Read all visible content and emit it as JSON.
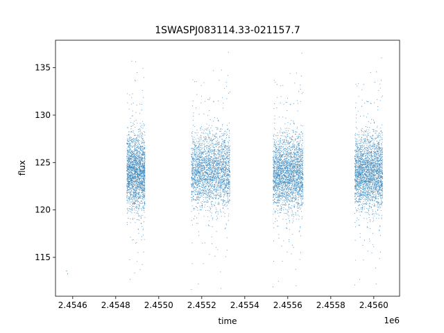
{
  "chart_data": {
    "type": "scatter",
    "title": "1SWASPJ083114.33-021157.7",
    "xlabel": "time",
    "ylabel": "flux",
    "x_offset_label": "1e6",
    "xlim": [
      2454520,
      2456120
    ],
    "ylim": [
      110.9,
      137.9
    ],
    "x_ticks": [
      2454600,
      2454800,
      2455000,
      2455200,
      2455400,
      2455600,
      2455800,
      2456000
    ],
    "x_tick_labels": [
      "2.4546",
      "2.4548",
      "2.4550",
      "2.4552",
      "2.4554",
      "2.4556",
      "2.4558",
      "2.4560"
    ],
    "y_ticks": [
      115,
      120,
      125,
      130,
      135
    ],
    "y_tick_labels": [
      "115",
      "120",
      "125",
      "130",
      "135"
    ],
    "grid": false,
    "marker_color": "#1f77b4",
    "observing_seasons": [
      {
        "x_range": [
          2454850,
          2454935
        ],
        "median_flux": 124.0,
        "flux_range": [
          112.0,
          136.5
        ]
      },
      {
        "x_range": [
          2455150,
          2455330
        ],
        "median_flux": 124.2,
        "flux_range": [
          111.5,
          136.8
        ]
      },
      {
        "x_range": [
          2455530,
          2455670
        ],
        "median_flux": 123.9,
        "flux_range": [
          111.8,
          136.7
        ]
      },
      {
        "x_range": [
          2455910,
          2456040
        ],
        "median_flux": 124.0,
        "flux_range": [
          112.0,
          136.2
        ]
      }
    ],
    "isolated_points": [
      {
        "x": 2454575,
        "y": 113.3
      },
      {
        "x": 2454570,
        "y": 113.6
      }
    ]
  }
}
